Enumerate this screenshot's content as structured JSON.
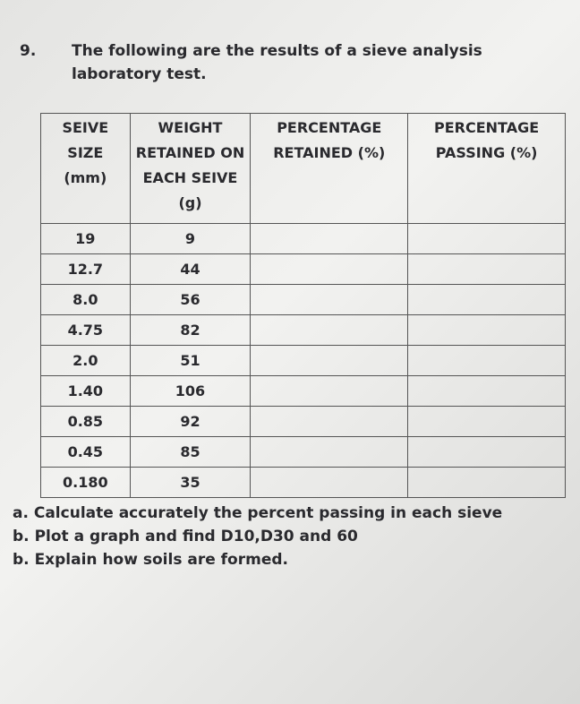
{
  "question": {
    "number": "9.",
    "text": "The following are the results of a sieve analysis laboratory test."
  },
  "table": {
    "headers": [
      "SEIVE SIZE (mm)",
      "WEIGHT RETAINED ON EACH SEIVE (g)",
      "PERCENTAGE RETAINED (%)",
      "PERCENTAGE PASSING (%)"
    ],
    "rows": [
      [
        "19",
        "9"
      ],
      [
        "12.7",
        "44"
      ],
      [
        "8.0",
        "56"
      ],
      [
        "4.75",
        "82"
      ],
      [
        "2.0",
        "51"
      ],
      [
        "1.40",
        "106"
      ],
      [
        "0.85",
        "92"
      ],
      [
        "0.45",
        "85"
      ],
      [
        "0.180",
        "35"
      ]
    ]
  },
  "tasks": [
    {
      "label": "a.",
      "text": "Calculate accurately the percent passing in each sieve"
    },
    {
      "label": "b.",
      "text": "Plot a graph and find D10,D30 and 60"
    },
    {
      "label": "b.",
      "text": "Explain how soils are formed."
    }
  ]
}
